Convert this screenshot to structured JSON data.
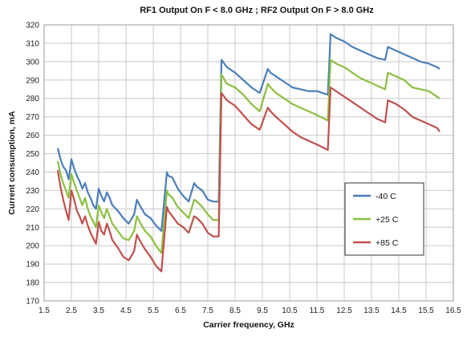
{
  "chart_data": {
    "type": "line",
    "title": "RF1 Output On  F < 8.0 GHz ; RF2 Output On  F > 8.0 GHz",
    "xlabel": "Carrier frequency, GHz",
    "ylabel": "Current consumption, mA",
    "xlim": [
      1.5,
      16.5
    ],
    "ylim": [
      170,
      320
    ],
    "x_ticks": [
      1.5,
      2.5,
      3.5,
      4.5,
      5.5,
      6.5,
      7.5,
      8.5,
      9.5,
      10.5,
      11.5,
      12.5,
      13.5,
      14.5,
      15.5,
      16.5
    ],
    "x_tick_labels": [
      "1.5",
      "2.5",
      "3.5",
      "4.5",
      "5.5",
      "6.5",
      "7.5",
      "8.5",
      "9.5",
      "10.5",
      "11.5",
      "12.5",
      "13.5",
      "14.5",
      "15.5",
      "16.5"
    ],
    "y_ticks": [
      170,
      180,
      190,
      200,
      210,
      220,
      230,
      240,
      250,
      260,
      270,
      280,
      290,
      300,
      310,
      320
    ],
    "y_tick_labels": [
      "170",
      "180",
      "190",
      "200",
      "210",
      "220",
      "230",
      "240",
      "250",
      "260",
      "270",
      "280",
      "290",
      "300",
      "310",
      "320"
    ],
    "grid": true,
    "legend_position": "right-middle",
    "series": [
      {
        "name": "-40 C",
        "color": "#4a7ebb",
        "x": [
          2.0,
          2.1,
          2.2,
          2.3,
          2.4,
          2.5,
          2.6,
          2.7,
          2.8,
          2.9,
          3.0,
          3.1,
          3.2,
          3.3,
          3.4,
          3.5,
          3.6,
          3.7,
          3.8,
          3.9,
          4.0,
          4.2,
          4.4,
          4.6,
          4.8,
          4.9,
          5.0,
          5.2,
          5.4,
          5.6,
          5.8,
          6.0,
          6.05,
          6.2,
          6.4,
          6.6,
          6.8,
          7.0,
          7.1,
          7.3,
          7.5,
          7.7,
          7.9,
          8.0,
          8.2,
          8.5,
          8.8,
          9.1,
          9.4,
          9.7,
          9.8,
          10.0,
          10.3,
          10.6,
          10.9,
          11.2,
          11.5,
          11.9,
          12.0,
          12.2,
          12.5,
          12.8,
          13.1,
          13.4,
          13.7,
          14.0,
          14.1,
          14.4,
          14.7,
          15.0,
          15.3,
          15.6,
          15.9,
          16.0
        ],
        "values": [
          253,
          247,
          243,
          241,
          236,
          247,
          242,
          238,
          235,
          231,
          234,
          229,
          226,
          222,
          220,
          231,
          227,
          224,
          229,
          226,
          222,
          219,
          215,
          212,
          217,
          225,
          222,
          217,
          215,
          211,
          208,
          240,
          238,
          237,
          231,
          227,
          224,
          234,
          232,
          230,
          225,
          224,
          224,
          301,
          297,
          294,
          290,
          286,
          283,
          296,
          294,
          292,
          289,
          286,
          285,
          284,
          284,
          282,
          315,
          313,
          311,
          308,
          306,
          304,
          302,
          301,
          308,
          306,
          304,
          302,
          300,
          299,
          297,
          296
        ]
      },
      {
        "name": "+25 C",
        "color": "#8cbf3f",
        "x": [
          2.0,
          2.1,
          2.2,
          2.3,
          2.4,
          2.5,
          2.6,
          2.7,
          2.8,
          2.9,
          3.0,
          3.1,
          3.2,
          3.3,
          3.4,
          3.5,
          3.6,
          3.7,
          3.8,
          3.9,
          4.0,
          4.2,
          4.4,
          4.6,
          4.8,
          4.9,
          5.0,
          5.2,
          5.4,
          5.6,
          5.8,
          6.0,
          6.05,
          6.2,
          6.4,
          6.6,
          6.8,
          7.0,
          7.1,
          7.3,
          7.5,
          7.7,
          7.9,
          8.0,
          8.2,
          8.5,
          8.8,
          9.1,
          9.4,
          9.7,
          9.8,
          10.0,
          10.3,
          10.6,
          10.9,
          11.2,
          11.5,
          11.9,
          12.0,
          12.2,
          12.5,
          12.8,
          13.1,
          13.4,
          13.7,
          14.0,
          14.1,
          14.4,
          14.7,
          15.0,
          15.3,
          15.6,
          15.9,
          16.0
        ],
        "values": [
          246,
          239,
          234,
          230,
          226,
          239,
          234,
          230,
          226,
          222,
          226,
          220,
          216,
          213,
          210,
          222,
          218,
          215,
          220,
          216,
          212,
          208,
          204,
          203,
          208,
          216,
          213,
          208,
          205,
          200,
          196,
          230,
          228,
          226,
          221,
          218,
          215,
          225,
          224,
          221,
          217,
          214,
          214,
          293,
          288,
          286,
          282,
          277,
          273,
          288,
          286,
          283,
          280,
          277,
          275,
          273,
          271,
          268,
          301,
          299,
          297,
          294,
          291,
          289,
          287,
          285,
          294,
          292,
          290,
          286,
          285,
          284,
          281,
          280
        ]
      },
      {
        "name": "+85 C",
        "color": "#c0504d",
        "x": [
          2.0,
          2.1,
          2.2,
          2.3,
          2.4,
          2.5,
          2.6,
          2.7,
          2.8,
          2.9,
          3.0,
          3.1,
          3.2,
          3.3,
          3.4,
          3.5,
          3.6,
          3.7,
          3.8,
          3.9,
          4.0,
          4.2,
          4.4,
          4.6,
          4.8,
          4.9,
          5.0,
          5.2,
          5.4,
          5.6,
          5.8,
          6.0,
          6.05,
          6.2,
          6.4,
          6.6,
          6.8,
          7.0,
          7.1,
          7.3,
          7.5,
          7.7,
          7.9,
          8.0,
          8.2,
          8.5,
          8.8,
          9.1,
          9.4,
          9.7,
          9.8,
          10.0,
          10.3,
          10.6,
          10.9,
          11.2,
          11.5,
          11.9,
          12.0,
          12.2,
          12.5,
          12.8,
          13.1,
          13.4,
          13.7,
          14.0,
          14.1,
          14.4,
          14.7,
          15.0,
          15.3,
          15.6,
          15.9,
          16.0
        ],
        "values": [
          241,
          232,
          225,
          219,
          214,
          230,
          225,
          219,
          216,
          212,
          216,
          211,
          207,
          204,
          201,
          213,
          208,
          206,
          212,
          208,
          203,
          199,
          194,
          192,
          197,
          206,
          203,
          198,
          194,
          189,
          186,
          221,
          219,
          216,
          212,
          210,
          207,
          216,
          215,
          212,
          207,
          205,
          205,
          283,
          279,
          276,
          271,
          266,
          263,
          275,
          273,
          270,
          266,
          262,
          259,
          257,
          255,
          252,
          286,
          284,
          281,
          278,
          275,
          272,
          269,
          267,
          279,
          277,
          274,
          270,
          268,
          266,
          264,
          262
        ]
      }
    ]
  }
}
